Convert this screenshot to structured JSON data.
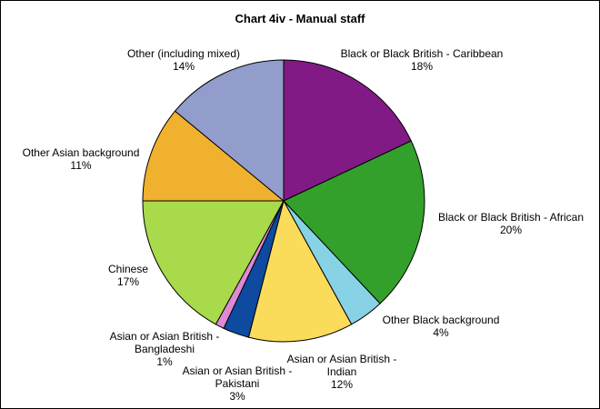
{
  "chart_data": {
    "type": "pie",
    "title": "Chart 4iv - Manual staff",
    "slices": [
      {
        "label": "Black or Black British - Caribbean",
        "percent": 18,
        "value_label": "18%",
        "color": "#821a86"
      },
      {
        "label": "Black or Black British - African",
        "percent": 20,
        "value_label": "20%",
        "color": "#33a02c"
      },
      {
        "label": "Other Black background",
        "percent": 4,
        "value_label": "4%",
        "color": "#88d2e6"
      },
      {
        "label": "Asian or Asian British - Indian",
        "percent": 12,
        "value_label": "12%",
        "color": "#fbdc5a"
      },
      {
        "label": "Asian or Asian British - Pakistani",
        "percent": 3,
        "value_label": "3%",
        "color": "#0d4aa0"
      },
      {
        "label": "Asian or Asian British - Bangladeshi",
        "percent": 1,
        "value_label": "1%",
        "color": "#e08ad6"
      },
      {
        "label": "Chinese",
        "percent": 17,
        "value_label": "17%",
        "color": "#a9da4b"
      },
      {
        "label": "Other Asian background",
        "percent": 11,
        "value_label": "11%",
        "color": "#efb12e"
      },
      {
        "label": "Other (including mixed)",
        "percent": 14,
        "value_label": "14%",
        "color": "#929dcc"
      }
    ]
  }
}
